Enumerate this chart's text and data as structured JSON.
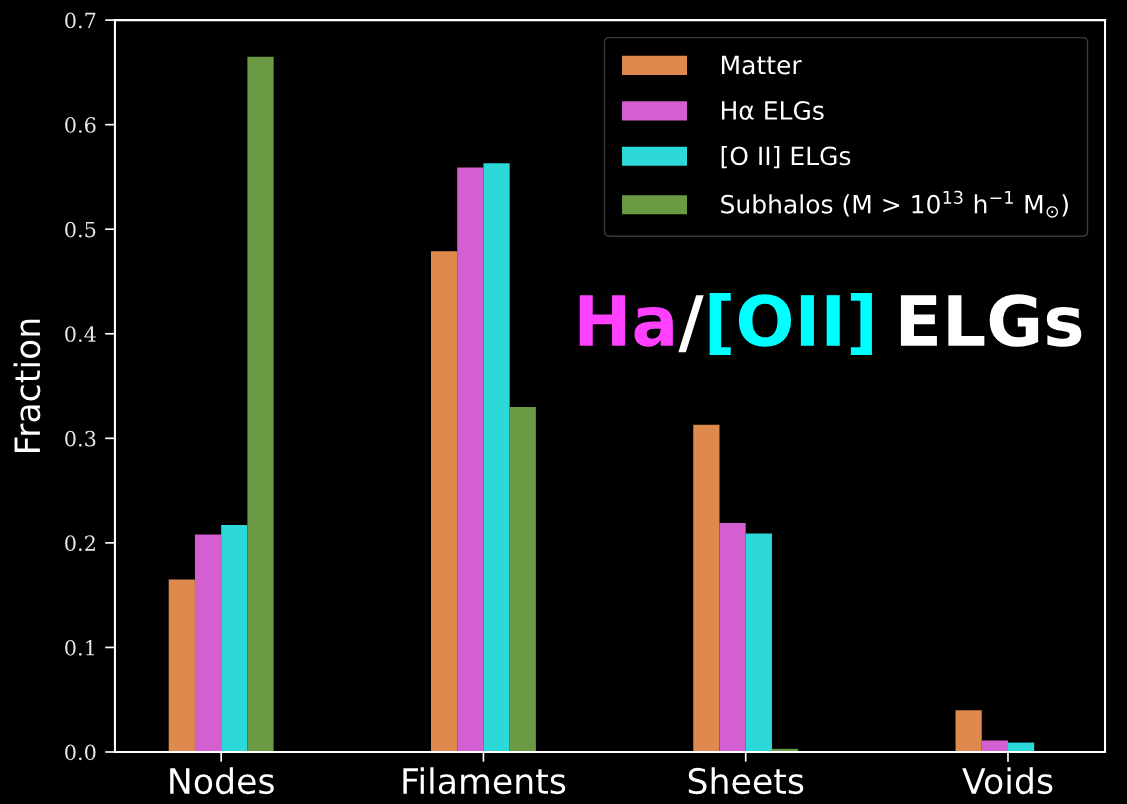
{
  "chart_data": {
    "type": "bar",
    "ylabel": "Fraction",
    "categories": [
      "Nodes",
      "Filaments",
      "Sheets",
      "Voids"
    ],
    "series": [
      {
        "name": "Matter",
        "color": "#e0894e",
        "values": [
          0.165,
          0.479,
          0.313,
          0.04
        ]
      },
      {
        "name": "Hα ELGs",
        "color": "#d35fd0",
        "values": [
          0.208,
          0.559,
          0.219,
          0.011
        ]
      },
      {
        "name": "[O II] ELGs",
        "color": "#2dd8d8",
        "values": [
          0.217,
          0.563,
          0.209,
          0.009
        ]
      },
      {
        "name": "Subhalos (M > 10$^{13}$ h$^{−1}$ M$_{⊙}$)",
        "color": "#6b9a45",
        "values": [
          0.665,
          0.33,
          0.003,
          0
        ]
      }
    ],
    "ylim": [
      0,
      0.7
    ],
    "yticks": [
      {
        "value": 0,
        "label": "0.0"
      },
      0.1,
      0.2,
      0.3,
      0.4,
      0.5,
      0.6,
      0.7
    ],
    "legend": "top right",
    "annotations": [
      "Ha",
      "/",
      "[OII]",
      "ELGs"
    ]
  }
}
